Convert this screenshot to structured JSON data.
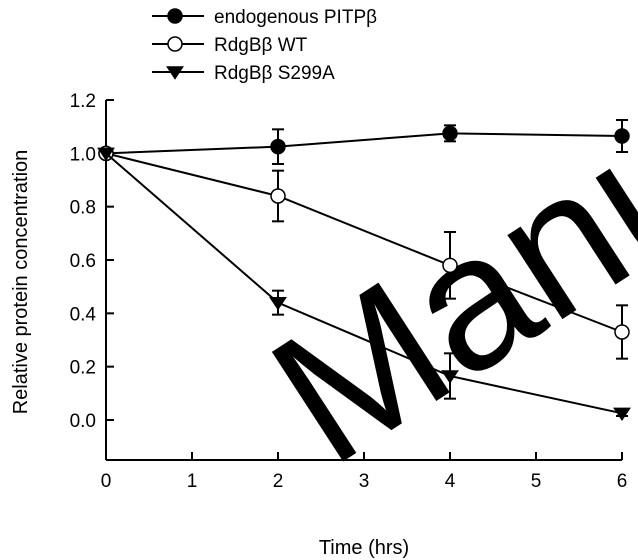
{
  "watermark_text": "Manuscript",
  "chart_data": {
    "type": "line",
    "title": "",
    "xlabel": "Time (hrs)",
    "ylabel": "Relative protein concentration",
    "xlim": [
      0,
      6
    ],
    "ylim": [
      -0.15,
      1.2
    ],
    "xticks": [
      0,
      1,
      2,
      3,
      4,
      5,
      6
    ],
    "xtick_labels": [
      "0",
      "1",
      "2",
      "3",
      "4",
      "5",
      "6"
    ],
    "yticks": [
      0.0,
      0.2,
      0.4,
      0.6,
      0.8,
      1.0,
      1.2
    ],
    "ytick_labels": [
      "0.0",
      "0.2",
      "0.4",
      "0.6",
      "0.8",
      "1.0",
      "1.2"
    ],
    "grid": false,
    "legend_position": "top-left, above plot",
    "series": [
      {
        "name": "endogenous PITPβ",
        "marker": "filled-circle",
        "x": [
          0,
          2,
          4,
          6
        ],
        "y": [
          1.0,
          1.025,
          1.075,
          1.065
        ],
        "err": [
          0,
          0.065,
          0.03,
          0.06
        ]
      },
      {
        "name": "RdgBβ WT",
        "marker": "open-circle",
        "x": [
          0,
          2,
          4,
          6
        ],
        "y": [
          1.0,
          0.84,
          0.58,
          0.33
        ],
        "err": [
          0,
          0.095,
          0.125,
          0.1
        ]
      },
      {
        "name": "RdgBβ  S299A",
        "marker": "filled-triangle-down",
        "x": [
          0,
          2,
          4,
          6
        ],
        "y": [
          1.0,
          0.44,
          0.165,
          0.025
        ],
        "err": [
          0,
          0.045,
          0.085,
          0.01
        ]
      }
    ]
  }
}
